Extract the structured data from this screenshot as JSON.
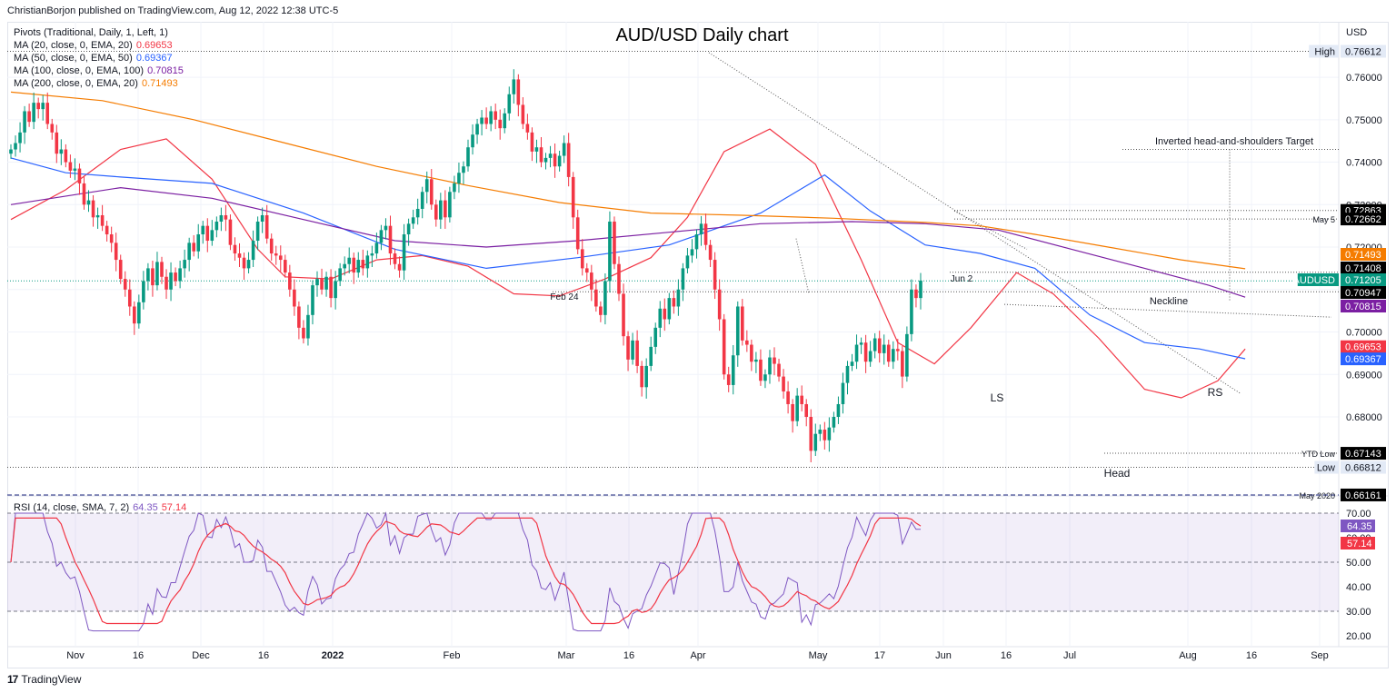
{
  "header": {
    "publisher": "ChristianBorjon published on TradingView.com, Aug 12, 2022 12:38 UTC-5"
  },
  "footer": {
    "brand": "TradingView",
    "logo_icon": "tradingview-logo-icon"
  },
  "indicators": [
    {
      "label": "Pivots (Traditional, Daily, 1, Left, 1)",
      "value": ""
    },
    {
      "label": "MA (20, close, 0, EMA, 20)",
      "value": "0.69653",
      "color": "#f23645"
    },
    {
      "label": "MA (50, close, 0, EMA, 50)",
      "value": "0.69367",
      "color": "#2962ff"
    },
    {
      "label": "MA (100, close, 0, EMA, 100)",
      "value": "0.70815",
      "color": "#7b1fa2"
    },
    {
      "label": "MA (200, close, 0, EMA, 20)",
      "value": "0.71493",
      "color": "#f57c00"
    }
  ],
  "rsi_header": {
    "label": "RSI (14, close, SMA, 7, 2)",
    "rsi_value": "64.35",
    "sma_value": "57.14"
  },
  "chart_data": {
    "type": "candlestick",
    "title": "AUD/USD Daily chart",
    "symbol": "AUDUSD",
    "currency": "USD",
    "ylim": [
      0.6616,
      0.7705
    ],
    "y_ticks": [
      "0.76000",
      "0.75000",
      "0.74000",
      "0.73000",
      "0.72000",
      "0.71000",
      "0.70000",
      "0.69000",
      "0.68000"
    ],
    "x_ticks": [
      "Nov",
      "16",
      "Dec",
      "16",
      "2022",
      "Feb",
      "Mar",
      "16",
      "Apr",
      "May",
      "17",
      "Jun",
      "16",
      "Jul",
      "Aug",
      "16",
      "Sep"
    ],
    "price_labels": [
      {
        "text": "0.76612",
        "label": "High",
        "bg": "#e3eaf6",
        "fg": "#131722"
      },
      {
        "text": "0.72863",
        "label": "",
        "bg": "#000000",
        "fg": "#ffffff"
      },
      {
        "text": "0.72662",
        "label": "May 5",
        "bg": "#000000",
        "fg": "#ffffff"
      },
      {
        "text": "0.71493",
        "label": "",
        "bg": "#f57c00",
        "fg": "#ffffff"
      },
      {
        "text": "0.71408",
        "label": "",
        "bg": "#000000",
        "fg": "#ffffff"
      },
      {
        "text": "0.71205",
        "label": "AUDUSD",
        "bg": "#089981",
        "fg": "#ffffff"
      },
      {
        "text": "0.70947",
        "label": "",
        "bg": "#000000",
        "fg": "#ffffff"
      },
      {
        "text": "0.70815",
        "label": "",
        "bg": "#7b1fa2",
        "fg": "#ffffff"
      },
      {
        "text": "0.69653",
        "label": "",
        "bg": "#f23645",
        "fg": "#ffffff"
      },
      {
        "text": "0.69367",
        "label": "",
        "bg": "#2962ff",
        "fg": "#ffffff"
      },
      {
        "text": "0.67143",
        "label": "YTD Low",
        "bg": "#000000",
        "fg": "#ffffff"
      },
      {
        "text": "0.66812",
        "label": "Low",
        "bg": "#e3eaf6",
        "fg": "#131722"
      },
      {
        "text": "0.66161",
        "label": "May 2020",
        "bg": "#000000",
        "fg": "#ffffff"
      }
    ],
    "annotations": [
      "Inverted head-and-shoulders Target",
      "Neckline",
      "LS",
      "Head",
      "RS",
      "Jun 2",
      "Feb 24",
      "May 5"
    ],
    "series": [
      {
        "name": "MA (20, close, 0, EMA, 20)",
        "color": "#f23645",
        "points": [
          [
            0,
            0.7265
          ],
          [
            12,
            0.7335
          ],
          [
            24,
            0.743
          ],
          [
            34,
            0.7455
          ],
          [
            44,
            0.736
          ],
          [
            54,
            0.7195
          ],
          [
            60,
            0.713
          ],
          [
            70,
            0.7125
          ],
          [
            80,
            0.717
          ],
          [
            90,
            0.718
          ],
          [
            100,
            0.7155
          ],
          [
            110,
            0.709
          ],
          [
            120,
            0.7085
          ],
          [
            130,
            0.7125
          ],
          [
            140,
            0.7175
          ],
          [
            148,
            0.727
          ],
          [
            156,
            0.7425
          ],
          [
            166,
            0.7478
          ],
          [
            176,
            0.7395
          ],
          [
            186,
            0.717
          ],
          [
            194,
            0.6975
          ],
          [
            202,
            0.6925
          ],
          [
            210,
            0.701
          ],
          [
            220,
            0.714
          ],
          [
            228,
            0.709
          ],
          [
            238,
            0.6985
          ],
          [
            248,
            0.6865
          ],
          [
            256,
            0.6845
          ],
          [
            264,
            0.6885
          ],
          [
            270,
            0.696
          ]
        ]
      },
      {
        "name": "MA (50, close, 0, EMA, 50)",
        "color": "#2962ff",
        "points": [
          [
            0,
            0.741
          ],
          [
            12,
            0.7375
          ],
          [
            24,
            0.7365
          ],
          [
            44,
            0.735
          ],
          [
            64,
            0.728
          ],
          [
            84,
            0.7195
          ],
          [
            104,
            0.715
          ],
          [
            124,
            0.7175
          ],
          [
            144,
            0.7205
          ],
          [
            164,
            0.728
          ],
          [
            178,
            0.737
          ],
          [
            188,
            0.7285
          ],
          [
            200,
            0.7205
          ],
          [
            212,
            0.7185
          ],
          [
            224,
            0.715
          ],
          [
            236,
            0.704
          ],
          [
            248,
            0.6975
          ],
          [
            260,
            0.696
          ],
          [
            270,
            0.6937
          ]
        ]
      },
      {
        "name": "MA (100, close, 0, EMA, 100)",
        "color": "#7b1fa2",
        "points": [
          [
            0,
            0.73
          ],
          [
            24,
            0.734
          ],
          [
            44,
            0.7315
          ],
          [
            64,
            0.7265
          ],
          [
            84,
            0.7215
          ],
          [
            104,
            0.72
          ],
          [
            124,
            0.7215
          ],
          [
            144,
            0.7235
          ],
          [
            164,
            0.7255
          ],
          [
            184,
            0.726
          ],
          [
            200,
            0.7255
          ],
          [
            216,
            0.724
          ],
          [
            232,
            0.7195
          ],
          [
            248,
            0.715
          ],
          [
            262,
            0.711
          ],
          [
            270,
            0.7082
          ]
        ]
      },
      {
        "name": "MA (200, close, 0, EMA, 20)",
        "color": "#f57c00",
        "points": [
          [
            0,
            0.7565
          ],
          [
            20,
            0.7545
          ],
          [
            40,
            0.75
          ],
          [
            60,
            0.7445
          ],
          [
            80,
            0.739
          ],
          [
            100,
            0.7345
          ],
          [
            120,
            0.7305
          ],
          [
            140,
            0.728
          ],
          [
            160,
            0.7275
          ],
          [
            180,
            0.7268
          ],
          [
            200,
            0.7258
          ],
          [
            212,
            0.725
          ],
          [
            224,
            0.723
          ],
          [
            240,
            0.72
          ],
          [
            256,
            0.717
          ],
          [
            270,
            0.7149
          ]
        ]
      }
    ],
    "candles_close": [
      0.743,
      0.7445,
      0.747,
      0.752,
      0.7495,
      0.754,
      0.7525,
      0.754,
      0.749,
      0.747,
      0.742,
      0.743,
      0.74,
      0.738,
      0.7385,
      0.735,
      0.73,
      0.731,
      0.727,
      0.7275,
      0.725,
      0.723,
      0.721,
      0.717,
      0.7125,
      0.71,
      0.706,
      0.702,
      0.707,
      0.712,
      0.715,
      0.711,
      0.7165,
      0.713,
      0.71,
      0.714,
      0.712,
      0.715,
      0.717,
      0.721,
      0.719,
      0.723,
      0.725,
      0.7215,
      0.724,
      0.726,
      0.7275,
      0.7265,
      0.7205,
      0.7185,
      0.7175,
      0.715,
      0.717,
      0.7215,
      0.726,
      0.7275,
      0.722,
      0.7185,
      0.718,
      0.717,
      0.714,
      0.71,
      0.706,
      0.701,
      0.6985,
      0.704,
      0.711,
      0.7125,
      0.71,
      0.713,
      0.708,
      0.712,
      0.715,
      0.716,
      0.7175,
      0.714,
      0.717,
      0.715,
      0.718,
      0.7185,
      0.721,
      0.724,
      0.725,
      0.7185,
      0.716,
      0.7145,
      0.723,
      0.7255,
      0.727,
      0.729,
      0.733,
      0.736,
      0.73,
      0.7265,
      0.731,
      0.727,
      0.733,
      0.735,
      0.7375,
      0.739,
      0.7435,
      0.7465,
      0.749,
      0.7505,
      0.749,
      0.752,
      0.75,
      0.748,
      0.7515,
      0.756,
      0.7595,
      0.7535,
      0.749,
      0.747,
      0.7425,
      0.7435,
      0.74,
      0.741,
      0.742,
      0.739,
      0.7415,
      0.7445,
      0.7365,
      0.727,
      0.7195,
      0.715,
      0.714,
      0.71,
      0.706,
      0.704,
      0.712,
      0.726,
      0.716,
      0.709,
      0.699,
      0.6935,
      0.698,
      0.692,
      0.687,
      0.692,
      0.6965,
      0.701,
      0.7055,
      0.703,
      0.708,
      0.706,
      0.71,
      0.715,
      0.718,
      0.7195,
      0.723,
      0.7255,
      0.7205,
      0.717,
      0.71,
      0.703,
      0.69,
      0.6875,
      0.6945,
      0.706,
      0.698,
      0.697,
      0.693,
      0.6935,
      0.6885,
      0.69,
      0.694,
      0.6925,
      0.6895,
      0.686,
      0.683,
      0.679,
      0.685,
      0.683,
      0.68,
      0.672,
      0.676,
      0.677,
      0.6745,
      0.6775,
      0.68,
      0.683,
      0.688,
      0.692,
      0.693,
      0.697,
      0.6975,
      0.693,
      0.6955,
      0.6985,
      0.695,
      0.697,
      0.693,
      0.696,
      0.6955,
      0.6895,
      0.6995,
      0.71,
      0.708,
      0.7121
    ]
  }
}
